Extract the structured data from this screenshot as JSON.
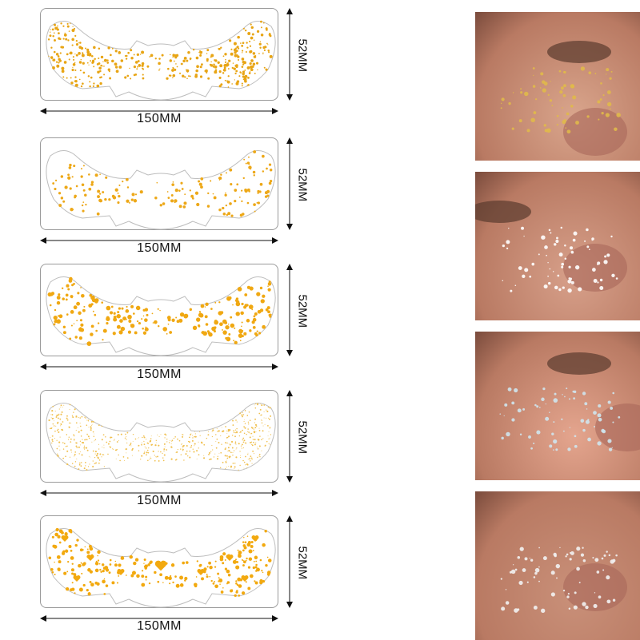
{
  "stickers": [
    {
      "width_label": "150MM",
      "height_label": "52MM",
      "dot_color": "#e8a515",
      "style": "dense-fine"
    },
    {
      "width_label": "150MM",
      "height_label": "52MM",
      "dot_color": "#eda818",
      "style": "sparse"
    },
    {
      "width_label": "150MM",
      "height_label": "52MM",
      "dot_color": "#f0a812",
      "style": "medium-dots"
    },
    {
      "width_label": "150MM",
      "height_label": "52MM",
      "dot_color": "#f0c050",
      "style": "very-fine"
    },
    {
      "width_label": "150MM",
      "height_label": "52MM",
      "dot_color": "#f2a90f",
      "style": "hearts"
    }
  ],
  "photos": [
    {
      "subject": "closed eye with gold star freckles",
      "skin": "#d9a58c",
      "accent": "#e0b94a"
    },
    {
      "subject": "nose with silver star freckles",
      "skin": "#d7a08a",
      "accent": "#ffffff"
    },
    {
      "subject": "cheek with iridescent dots",
      "skin": "#e4a58e",
      "accent": "#cfe6ee"
    },
    {
      "subject": "nose bridge with silver glitter",
      "skin": "#c99079",
      "accent": "#f2f2f2"
    }
  ]
}
